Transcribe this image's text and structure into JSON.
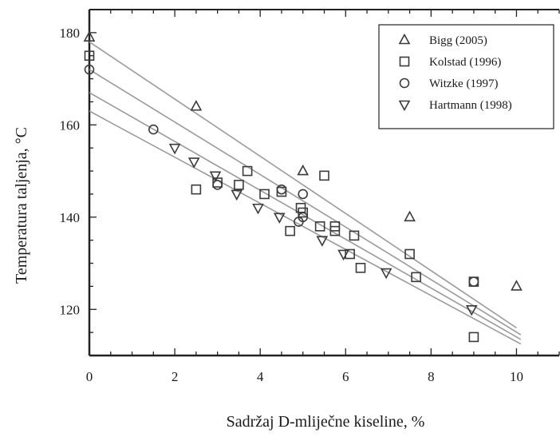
{
  "chart_data": {
    "type": "scatter",
    "xlabel": "Sadržaj D-mliječne kiseline, %",
    "ylabel": "Temperatura taljenja, °C",
    "xlim": [
      0,
      11
    ],
    "ylim": [
      110,
      185
    ],
    "xticks": [
      0,
      2,
      4,
      6,
      8,
      10
    ],
    "yticks": [
      120,
      140,
      160,
      180
    ],
    "grid": false,
    "legend_position": "top-right",
    "series": [
      {
        "name": "Bigg (2005)",
        "marker": "triangle-up",
        "points": [
          [
            0,
            179
          ],
          [
            2.5,
            164
          ],
          [
            5,
            150
          ],
          [
            7.5,
            140
          ],
          [
            10,
            125
          ]
        ],
        "fit": [
          [
            0,
            178
          ],
          [
            10,
            116
          ]
        ]
      },
      {
        "name": "Kolstad (1996)",
        "marker": "square",
        "points": [
          [
            0,
            175
          ],
          [
            2.5,
            146
          ],
          [
            3,
            147.5
          ],
          [
            3.5,
            147
          ],
          [
            3.7,
            150
          ],
          [
            4.1,
            145
          ],
          [
            4.5,
            145.5
          ],
          [
            4.7,
            137
          ],
          [
            4.95,
            142
          ],
          [
            5,
            141
          ],
          [
            5.5,
            149
          ],
          [
            5.4,
            138
          ],
          [
            5.75,
            138
          ],
          [
            5.75,
            137
          ],
          [
            6.1,
            132
          ],
          [
            6.2,
            136
          ],
          [
            6.35,
            129
          ],
          [
            7.5,
            132
          ],
          [
            7.65,
            127
          ],
          [
            9,
            126
          ],
          [
            9,
            114
          ]
        ],
        "fit": [
          [
            0,
            172
          ],
          [
            10.1,
            114.5
          ]
        ]
      },
      {
        "name": "Witzke (1997)",
        "marker": "circle",
        "points": [
          [
            0,
            172
          ],
          [
            1.5,
            159
          ],
          [
            3,
            147
          ],
          [
            4.5,
            146
          ],
          [
            4.9,
            139
          ],
          [
            5,
            145
          ],
          [
            5,
            140
          ],
          [
            9,
            126
          ]
        ],
        "fit": [
          [
            0,
            167
          ],
          [
            10.1,
            113.5
          ]
        ]
      },
      {
        "name": "Hartmann (1998)",
        "marker": "triangle-down",
        "points": [
          [
            2,
            155
          ],
          [
            2.45,
            152
          ],
          [
            2.95,
            149
          ],
          [
            3.45,
            145
          ],
          [
            3.95,
            142
          ],
          [
            4.45,
            140
          ],
          [
            5.45,
            135
          ],
          [
            5.95,
            132
          ],
          [
            6.95,
            128
          ],
          [
            8.95,
            120
          ]
        ],
        "fit": [
          [
            0,
            163
          ],
          [
            10.1,
            112.5
          ]
        ]
      }
    ]
  }
}
